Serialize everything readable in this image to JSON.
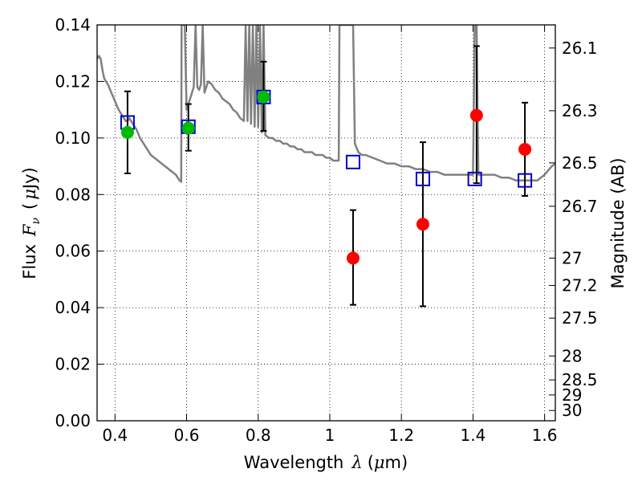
{
  "chart_data": {
    "type": "scatter",
    "xlabel": {
      "text": "Wavelength",
      "symbol": "λ",
      "unit_open": "(",
      "unit_mu": "μ",
      "unit_rest": "m)"
    },
    "ylabel": {
      "text": "Flux",
      "symbol": "F",
      "symbol_sub": "ν",
      "unit_open": "(",
      "unit_mu": "μ",
      "unit_rest": "Jy)"
    },
    "y2label": "Magnitude (AB)",
    "xlim": [
      0.35,
      1.63
    ],
    "ylim": [
      0.0,
      0.14
    ],
    "grid": true,
    "x_ticks": [
      0.4,
      0.6,
      0.8,
      1.0,
      1.2,
      1.4,
      1.6
    ],
    "x_tick_labels": [
      "0.4",
      "0.6",
      "0.8",
      "1",
      "1.2",
      "1.4",
      "1.6"
    ],
    "y_ticks": [
      0.0,
      0.02,
      0.04,
      0.06,
      0.08,
      0.1,
      0.12,
      0.14
    ],
    "y_tick_labels": [
      "0.00",
      "0.02",
      "0.04",
      "0.06",
      "0.08",
      "0.10",
      "0.12",
      "0.14"
    ],
    "mag_ticks": [
      {
        "label": "26.1",
        "mag": 26.1
      },
      {
        "label": "26.3",
        "mag": 26.3
      },
      {
        "label": "26.5",
        "mag": 26.5
      },
      {
        "label": "26.7",
        "mag": 26.7
      },
      {
        "label": "27",
        "mag": 27.0
      },
      {
        "label": "27.2",
        "mag": 27.2
      },
      {
        "label": "27.5",
        "mag": 27.5
      },
      {
        "label": "28",
        "mag": 28.0
      },
      {
        "label": "28.5",
        "mag": 28.5
      },
      {
        "label": "29",
        "mag": 29.0
      },
      {
        "label": "30",
        "mag": 30.0
      }
    ],
    "series": [
      {
        "kind": "model_spectrum",
        "color": "#808080",
        "x": [
          0.35,
          0.355,
          0.36,
          0.365,
          0.37,
          0.38,
          0.39,
          0.4,
          0.41,
          0.42,
          0.43,
          0.435,
          0.44,
          0.445,
          0.45,
          0.46,
          0.47,
          0.48,
          0.49,
          0.5,
          0.51,
          0.52,
          0.53,
          0.54,
          0.55,
          0.56,
          0.57,
          0.575,
          0.58,
          0.585,
          0.586,
          0.59,
          0.595,
          0.6,
          0.605,
          0.61,
          0.615,
          0.62,
          0.625,
          0.63,
          0.635,
          0.64,
          0.645,
          0.65,
          0.655,
          0.66,
          0.67,
          0.68,
          0.69,
          0.7,
          0.71,
          0.72,
          0.73,
          0.74,
          0.75,
          0.76,
          0.765,
          0.77,
          0.775,
          0.78,
          0.785,
          0.79,
          0.795,
          0.8,
          0.805,
          0.81,
          0.815,
          0.82,
          0.83,
          0.84,
          0.85,
          0.86,
          0.87,
          0.88,
          0.89,
          0.9,
          0.91,
          0.92,
          0.93,
          0.94,
          0.95,
          0.96,
          0.97,
          0.98,
          0.99,
          1.0,
          1.01,
          1.02,
          1.025,
          1.027,
          1.03,
          1.04,
          1.05,
          1.06,
          1.065,
          1.07,
          1.08,
          1.09,
          1.1,
          1.12,
          1.14,
          1.16,
          1.18,
          1.2,
          1.22,
          1.24,
          1.26,
          1.28,
          1.3,
          1.32,
          1.34,
          1.36,
          1.37,
          1.38,
          1.39,
          1.4,
          1.405,
          1.41,
          1.415,
          1.42,
          1.43,
          1.44,
          1.46,
          1.48,
          1.5,
          1.52,
          1.54,
          1.56,
          1.58,
          1.6,
          1.62,
          1.63
        ],
        "y": [
          0.128,
          0.129,
          0.128,
          0.124,
          0.121,
          0.119,
          0.116,
          0.113,
          0.11,
          0.108,
          0.106,
          0.106,
          0.107,
          0.106,
          0.105,
          0.103,
          0.1,
          0.098,
          0.096,
          0.094,
          0.093,
          0.092,
          0.091,
          0.09,
          0.089,
          0.088,
          0.087,
          0.086,
          0.085,
          0.0845,
          0.14,
          0.14,
          0.14,
          0.11,
          0.112,
          0.114,
          0.116,
          0.118,
          0.14,
          0.118,
          0.117,
          0.119,
          0.14,
          0.116,
          0.118,
          0.12,
          0.119,
          0.117,
          0.116,
          0.114,
          0.113,
          0.112,
          0.11,
          0.109,
          0.107,
          0.106,
          0.14,
          0.106,
          0.14,
          0.105,
          0.14,
          0.104,
          0.14,
          0.104,
          0.14,
          0.102,
          0.14,
          0.101,
          0.1,
          0.1,
          0.099,
          0.099,
          0.098,
          0.098,
          0.097,
          0.097,
          0.096,
          0.096,
          0.095,
          0.095,
          0.095,
          0.094,
          0.094,
          0.094,
          0.093,
          0.093,
          0.092,
          0.092,
          0.092,
          0.14,
          0.14,
          0.14,
          0.14,
          0.14,
          0.14,
          0.098,
          0.095,
          0.094,
          0.094,
          0.093,
          0.092,
          0.091,
          0.091,
          0.09,
          0.09,
          0.089,
          0.089,
          0.088,
          0.088,
          0.087,
          0.087,
          0.087,
          0.087,
          0.087,
          0.087,
          0.087,
          0.14,
          0.14,
          0.087,
          0.087,
          0.087,
          0.087,
          0.087,
          0.086,
          0.086,
          0.085,
          0.085,
          0.085,
          0.085,
          0.087,
          0.09,
          0.091
        ]
      },
      {
        "kind": "model_photometry",
        "marker": "open-square",
        "color": "#0000cc",
        "x": [
          0.435,
          0.605,
          0.815,
          1.065,
          1.26,
          1.405,
          1.545
        ],
        "y": [
          0.1055,
          0.104,
          0.1145,
          0.0915,
          0.0855,
          0.0855,
          0.085
        ]
      },
      {
        "kind": "observed_photometry",
        "marker": "circle",
        "colors": [
          "#00bb00",
          "#00bb00",
          "#00bb00",
          "#ff0000",
          "#ff0000",
          "#ff0000",
          "#ff0000"
        ],
        "x": [
          0.435,
          0.605,
          0.815,
          1.065,
          1.26,
          1.41,
          1.545
        ],
        "y": [
          0.102,
          0.1035,
          0.1145,
          0.0575,
          0.0695,
          0.108,
          0.096
        ],
        "err_low": [
          0.0875,
          0.0955,
          0.1025,
          0.041,
          0.0405,
          0.084,
          0.0795
        ],
        "err_high": [
          0.1165,
          0.112,
          0.127,
          0.0745,
          0.0985,
          0.1325,
          0.1125
        ]
      }
    ]
  }
}
